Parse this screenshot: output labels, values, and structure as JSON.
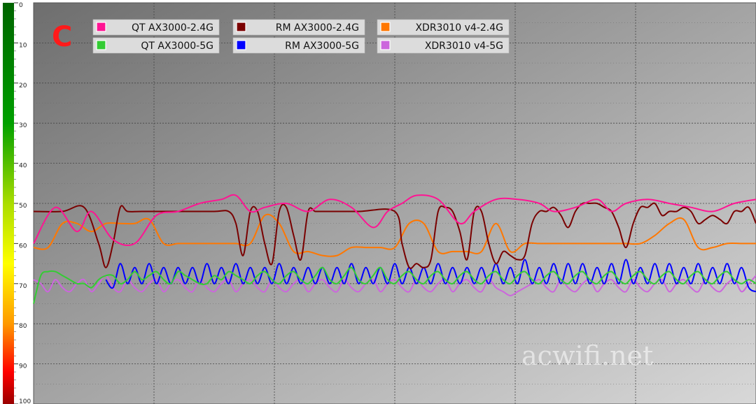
{
  "panel_letter": "C",
  "watermark": "acwifi.net",
  "chart_data": {
    "type": "line",
    "title": "",
    "xlabel": "",
    "ylabel": "",
    "ylim": [
      0,
      100
    ],
    "y_inverted": true,
    "y_ticks": [
      "0",
      "10",
      "20",
      "30",
      "40",
      "50",
      "60",
      "70",
      "80",
      "90",
      "100"
    ],
    "grid": true,
    "legend_placement": "top-left",
    "x_range": [
      0,
      100
    ],
    "series": [
      {
        "name": "QT AX3000-2.4G",
        "color": "#ff1493",
        "x": [
          0,
          3,
          6,
          8,
          11,
          14,
          17,
          20,
          23,
          26,
          28,
          30,
          32,
          35,
          38,
          41,
          44,
          47,
          49,
          51,
          53,
          56,
          59,
          61,
          64,
          67,
          70,
          72,
          75,
          78,
          80,
          82,
          85,
          88,
          91,
          94,
          97,
          100
        ],
        "values": [
          60,
          51,
          57,
          52,
          59,
          60,
          53,
          52,
          50,
          49,
          48,
          52,
          51,
          50,
          52,
          49,
          51,
          56,
          52,
          50,
          48,
          49,
          55,
          52,
          49,
          49,
          50,
          52,
          51,
          49,
          52,
          50,
          49,
          50,
          51,
          52,
          50,
          49
        ]
      },
      {
        "name": "QT AX3000-5G",
        "color": "#33cc33",
        "x": [
          0,
          1,
          2,
          3,
          4,
          5,
          6,
          7,
          8,
          9,
          10,
          11,
          12,
          13,
          14,
          15,
          16,
          17,
          18,
          19,
          20,
          21,
          22,
          23,
          24,
          25,
          26,
          27,
          28,
          29,
          30,
          31,
          32,
          33,
          34,
          35,
          36,
          37,
          38,
          39,
          40,
          41,
          42,
          43,
          44,
          45,
          46,
          47,
          48,
          49,
          50,
          51,
          52,
          53,
          54,
          55,
          56,
          57,
          58,
          59,
          60,
          61,
          62,
          63,
          64,
          65,
          66,
          67,
          68,
          69,
          70,
          71,
          72,
          73,
          74,
          75,
          76,
          77,
          78,
          79,
          80,
          81,
          82,
          83,
          84,
          85,
          86,
          87,
          88,
          89,
          90,
          91,
          92,
          93,
          94,
          95,
          96,
          97,
          98,
          99,
          100
        ],
        "values": [
          75,
          68,
          67,
          67,
          68,
          69,
          70,
          70,
          71,
          69,
          68,
          68,
          70,
          69,
          67,
          69,
          68,
          67,
          69,
          70,
          67,
          68,
          69,
          70,
          70,
          68,
          69,
          67,
          68,
          69,
          70,
          68,
          67,
          69,
          70,
          68,
          67,
          69,
          70,
          68,
          66,
          69,
          70,
          68,
          66,
          69,
          70,
          68,
          66,
          69,
          70,
          68,
          67,
          69,
          70,
          68,
          67,
          69,
          70,
          68,
          67,
          69,
          70,
          68,
          67,
          69,
          70,
          68,
          67,
          69,
          70,
          68,
          67,
          69,
          70,
          68,
          67,
          69,
          70,
          68,
          67,
          69,
          70,
          68,
          67,
          69,
          70,
          68,
          67,
          69,
          70,
          68,
          67,
          69,
          70,
          68,
          67,
          69,
          70,
          69,
          70
        ]
      },
      {
        "name": "RM AX3000-2.4G",
        "color": "#7a0000",
        "x": [
          0,
          4,
          7,
          9,
          10,
          11,
          12,
          13,
          15,
          20,
          25,
          27,
          28,
          29,
          30,
          31,
          32,
          33,
          34,
          35,
          36,
          37,
          38,
          39,
          40,
          45,
          50,
          51,
          52,
          53,
          54,
          55,
          56,
          57,
          58,
          59,
          60,
          61,
          62,
          63,
          64,
          65,
          66,
          67,
          68,
          69,
          70,
          71,
          72,
          73,
          74,
          75,
          76,
          77,
          78,
          79,
          80,
          81,
          82,
          83,
          84,
          85,
          86,
          87,
          88,
          89,
          90,
          91,
          92,
          93,
          94,
          95,
          96,
          97,
          98,
          99,
          100
        ],
        "values": [
          52,
          52,
          51,
          60,
          66,
          60,
          51,
          52,
          52,
          52,
          52,
          52,
          55,
          63,
          52,
          52,
          60,
          65,
          52,
          51,
          58,
          64,
          52,
          52,
          52,
          52,
          52,
          60,
          66,
          65,
          66,
          64,
          52,
          51,
          52,
          57,
          64,
          52,
          52,
          60,
          65,
          62,
          63,
          64,
          63,
          55,
          52,
          52,
          51,
          53,
          56,
          52,
          50,
          50,
          50,
          51,
          52,
          56,
          61,
          55,
          51,
          51,
          50,
          53,
          52,
          52,
          51,
          52,
          55,
          54,
          53,
          54,
          55,
          52,
          52,
          51,
          55
        ]
      },
      {
        "name": "RM AX3000-5G",
        "color": "#0000ff",
        "x": [
          10,
          11,
          12,
          13,
          14,
          15,
          16,
          17,
          18,
          19,
          20,
          21,
          22,
          23,
          24,
          25,
          26,
          27,
          28,
          29,
          30,
          31,
          32,
          33,
          34,
          35,
          36,
          37,
          38,
          39,
          40,
          41,
          42,
          43,
          44,
          45,
          46,
          47,
          48,
          49,
          50,
          51,
          52,
          53,
          54,
          55,
          56,
          57,
          58,
          59,
          60,
          61,
          62,
          63,
          64,
          65,
          66,
          67,
          68,
          69,
          70,
          71,
          72,
          73,
          74,
          75,
          76,
          77,
          78,
          79,
          80,
          81,
          82,
          83,
          84,
          85,
          86,
          87,
          88,
          89,
          90,
          91,
          92,
          93,
          94,
          95,
          96,
          97,
          98,
          99,
          100
        ],
        "values": [
          69,
          71,
          65,
          70,
          66,
          70,
          65,
          70,
          66,
          70,
          66,
          70,
          66,
          70,
          65,
          70,
          66,
          70,
          65,
          70,
          66,
          70,
          66,
          70,
          65,
          70,
          66,
          70,
          66,
          70,
          66,
          70,
          66,
          70,
          65,
          70,
          66,
          70,
          66,
          70,
          65,
          70,
          66,
          70,
          66,
          70,
          65,
          70,
          66,
          70,
          66,
          70,
          66,
          70,
          65,
          70,
          66,
          70,
          64,
          70,
          66,
          70,
          65,
          70,
          65,
          70,
          65,
          70,
          66,
          70,
          65,
          70,
          64,
          70,
          66,
          70,
          65,
          70,
          65,
          70,
          66,
          70,
          65,
          70,
          66,
          70,
          65,
          70,
          66,
          71,
          72
        ]
      },
      {
        "name": "XDR3010 v4-2.4G",
        "color": "#ff7700",
        "x": [
          0,
          2,
          4,
          6,
          8,
          10,
          12,
          14,
          16,
          18,
          20,
          22,
          24,
          26,
          28,
          30,
          32,
          34,
          36,
          38,
          40,
          42,
          44,
          46,
          48,
          50,
          52,
          54,
          56,
          58,
          60,
          62,
          64,
          66,
          68,
          70,
          72,
          74,
          76,
          78,
          80,
          82,
          84,
          86,
          88,
          90,
          92,
          94,
          96,
          98,
          100
        ],
        "values": [
          61,
          61,
          55,
          55,
          57,
          55,
          55,
          55,
          54,
          60,
          60,
          60,
          60,
          60,
          60,
          60,
          53,
          55,
          62,
          62,
          63,
          63,
          61,
          61,
          61,
          61,
          55,
          55,
          62,
          62,
          62,
          62,
          55,
          62,
          60,
          60,
          60,
          60,
          60,
          60,
          60,
          60,
          60,
          58,
          55,
          54,
          61,
          61,
          60,
          60,
          60
        ]
      },
      {
        "name": "XDR3010 v4-5G",
        "color": "#cc66dd",
        "x": [
          0,
          1,
          2,
          3,
          4,
          5,
          6,
          7,
          8,
          9,
          10,
          11,
          12,
          13,
          14,
          15,
          16,
          17,
          18,
          19,
          20,
          21,
          22,
          23,
          24,
          25,
          26,
          27,
          28,
          29,
          30,
          31,
          32,
          33,
          34,
          35,
          36,
          37,
          38,
          39,
          40,
          41,
          42,
          43,
          44,
          45,
          46,
          47,
          48,
          49,
          50,
          51,
          52,
          53,
          54,
          55,
          56,
          57,
          58,
          59,
          60,
          61,
          62,
          63,
          64,
          65,
          66,
          67,
          68,
          69,
          70,
          71,
          72,
          73,
          74,
          75,
          76,
          77,
          78,
          79,
          80,
          81,
          82,
          83,
          84,
          85,
          86,
          87,
          88,
          89,
          90,
          91,
          92,
          93,
          94,
          95,
          96,
          97,
          98,
          99,
          100
        ],
        "values": [
          69,
          70,
          72,
          69,
          71,
          72,
          70,
          69,
          72,
          70,
          68,
          71,
          72,
          69,
          71,
          72,
          70,
          69,
          72,
          70,
          69,
          71,
          72,
          69,
          71,
          72,
          70,
          69,
          72,
          70,
          69,
          71,
          72,
          69,
          71,
          72,
          70,
          69,
          72,
          70,
          69,
          71,
          72,
          69,
          71,
          72,
          70,
          69,
          72,
          70,
          69,
          71,
          72,
          69,
          71,
          72,
          70,
          69,
          72,
          70,
          69,
          71,
          72,
          69,
          71,
          72,
          73,
          72,
          71,
          70,
          69,
          71,
          72,
          69,
          71,
          72,
          70,
          69,
          72,
          70,
          69,
          71,
          72,
          69,
          71,
          72,
          70,
          69,
          72,
          70,
          69,
          71,
          72,
          69,
          71,
          72,
          70,
          69,
          72,
          70,
          68
        ]
      }
    ]
  }
}
